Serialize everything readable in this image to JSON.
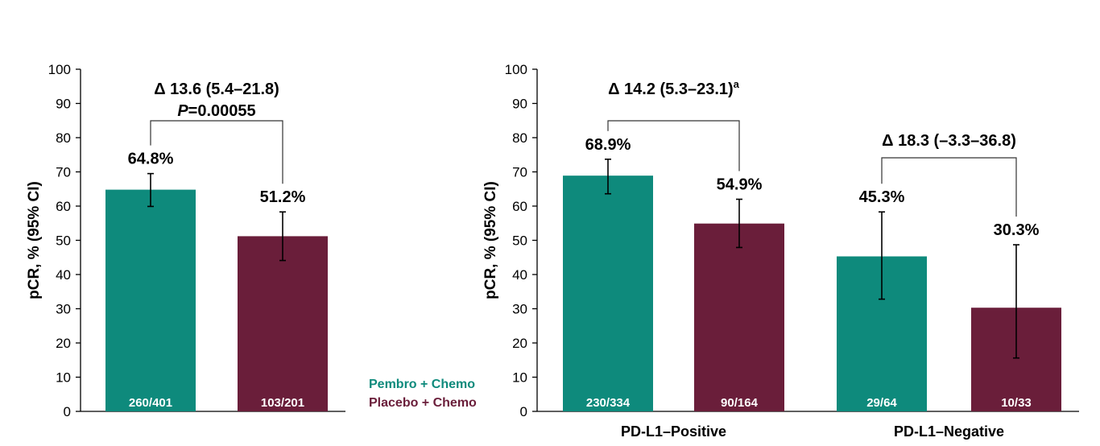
{
  "colors": {
    "pembro": "#0e8a7c",
    "placebo": "#6a1e3a",
    "axis": "#000000"
  },
  "legend": {
    "items": [
      {
        "label": "Pembro + Chemo",
        "color": "#0e8a7c"
      },
      {
        "label": "Placebo + Chemo",
        "color": "#6a1e3a"
      }
    ]
  },
  "chart_data": [
    {
      "type": "bar",
      "ylabel": "pCR, % (95% CI)",
      "ylim": [
        0,
        100
      ],
      "yticks": [
        0,
        10,
        20,
        30,
        40,
        50,
        60,
        70,
        80,
        90,
        100
      ],
      "groups": [
        ""
      ],
      "series": [
        {
          "name": "Pembro + Chemo",
          "values": [
            64.8
          ],
          "ci_low": [
            59.9
          ],
          "ci_high": [
            69.5
          ],
          "labels": [
            "64.8%"
          ],
          "n": [
            "260/401"
          ]
        },
        {
          "name": "Placebo + Chemo",
          "values": [
            51.2
          ],
          "ci_low": [
            44.1
          ],
          "ci_high": [
            58.3
          ],
          "labels": [
            "51.2%"
          ],
          "n": [
            "103/201"
          ]
        }
      ],
      "annotations": [
        {
          "group": 0,
          "line1": "Δ 13.6 (5.4–21.8)",
          "p_italic": "P",
          "p_rest": "=0.00055"
        }
      ]
    },
    {
      "type": "bar",
      "ylabel": "pCR, % (95% CI)",
      "ylim": [
        0,
        100
      ],
      "yticks": [
        0,
        10,
        20,
        30,
        40,
        50,
        60,
        70,
        80,
        90,
        100
      ],
      "groups": [
        "PD-L1–Positive",
        "PD-L1–Negative"
      ],
      "series": [
        {
          "name": "Pembro + Chemo",
          "values": [
            68.9,
            45.3
          ],
          "ci_low": [
            63.6,
            32.8
          ],
          "ci_high": [
            73.7,
            58.3
          ],
          "labels": [
            "68.9%",
            "45.3%"
          ],
          "n": [
            "230/334",
            "29/64"
          ]
        },
        {
          "name": "Placebo + Chemo",
          "values": [
            54.9,
            30.3
          ],
          "ci_low": [
            47.9,
            15.6
          ],
          "ci_high": [
            62.0,
            48.7
          ],
          "labels": [
            "54.9%",
            "30.3%"
          ],
          "n": [
            "90/164",
            "10/33"
          ]
        }
      ],
      "annotations": [
        {
          "group": 0,
          "line1": "Δ 14.2 (5.3–23.1)",
          "superscript": "a"
        },
        {
          "group": 1,
          "line1": "Δ 18.3 (–3.3–36.8)"
        }
      ]
    }
  ]
}
